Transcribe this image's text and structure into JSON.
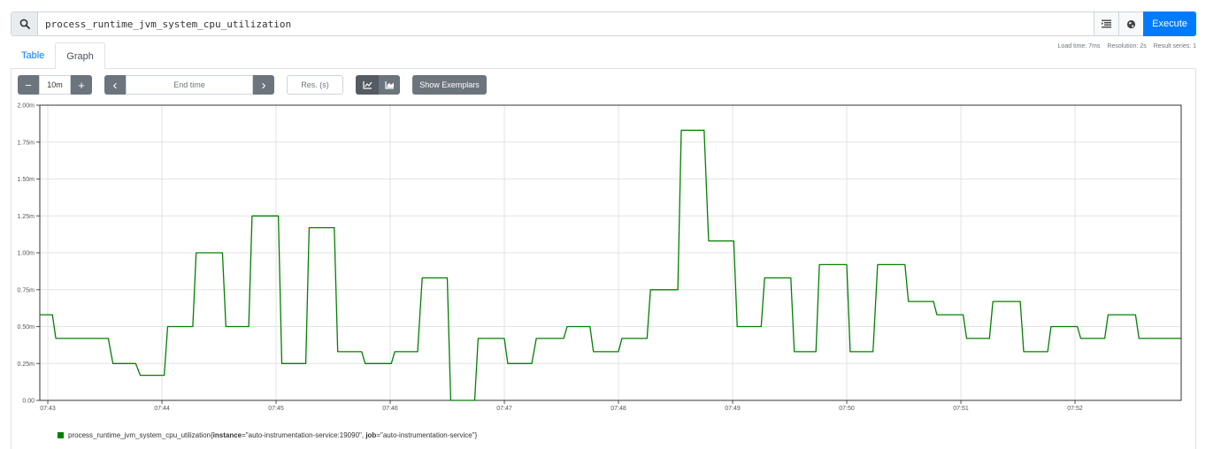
{
  "query": {
    "value": "process_runtime_jvm_system_cpu_utilization"
  },
  "toolbar": {
    "execute_label": "Execute"
  },
  "stats": {
    "load_time": "Load time: 7ms",
    "resolution": "Resolution: 2s",
    "result_series": "Result series: 1"
  },
  "tabs": [
    {
      "label": "Table"
    },
    {
      "label": "Graph"
    }
  ],
  "controls": {
    "minus": "−",
    "range": "10m",
    "plus": "+",
    "prev": "‹",
    "end_time_placeholder": "End time",
    "next": "›",
    "res_placeholder": "Res. (s)",
    "show_exemplars": "Show Exemplars"
  },
  "icons": {
    "search": "search-icon",
    "format": "format-query-icon",
    "globe": "metrics-explorer-icon",
    "line": "line-chart-icon",
    "stacked": "stacked-chart-icon"
  },
  "colors": {
    "series": "#008000",
    "accent": "#007bff",
    "button": "#6c757d"
  },
  "legend": {
    "metric": "process_runtime_jvm_system_cpu_utilization",
    "brace_open": "{",
    "label1_key": "instance",
    "label1_value": "=\"auto-instrumentation-service:19090\", ",
    "label2_key": "job",
    "label2_value": "=\"auto-instrumentation-service\"",
    "brace_close": "}"
  },
  "chart_data": {
    "type": "line",
    "step": true,
    "grid": true,
    "ylim": [
      0,
      2.0
    ],
    "xlim_minutes": [
      42.93,
      52.93
    ],
    "y_ticks": [
      {
        "v": 0,
        "label": "0.00"
      },
      {
        "v": 0.25,
        "label": "0.25m"
      },
      {
        "v": 0.5,
        "label": "0.50m"
      },
      {
        "v": 0.75,
        "label": "0.75m"
      },
      {
        "v": 1.0,
        "label": "1.00m"
      },
      {
        "v": 1.25,
        "label": "1.25m"
      },
      {
        "v": 1.5,
        "label": "1.50m"
      },
      {
        "v": 1.75,
        "label": "1.75m"
      },
      {
        "v": 2.0,
        "label": "2.00m"
      }
    ],
    "x_ticks": [
      {
        "t": 43,
        "label": "07:43"
      },
      {
        "t": 44,
        "label": "07:44"
      },
      {
        "t": 45,
        "label": "07:45"
      },
      {
        "t": 46,
        "label": "07:46"
      },
      {
        "t": 47,
        "label": "07:47"
      },
      {
        "t": 48,
        "label": "07:48"
      },
      {
        "t": 49,
        "label": "07:49"
      },
      {
        "t": 50,
        "label": "07:50"
      },
      {
        "t": 51,
        "label": "07:51"
      },
      {
        "t": 52,
        "label": "07:52"
      }
    ],
    "series": [
      {
        "name": "process_runtime_jvm_system_cpu_utilization{instance=\"auto-instrumentation-service:19090\", job=\"auto-instrumentation-service\"}",
        "color": "#008000",
        "points": [
          [
            42.93,
            0.58
          ],
          [
            43.04,
            0.58
          ],
          [
            43.07,
            0.42
          ],
          [
            43.53,
            0.42
          ],
          [
            43.57,
            0.25
          ],
          [
            43.77,
            0.25
          ],
          [
            43.81,
            0.17
          ],
          [
            44.02,
            0.17
          ],
          [
            44.05,
            0.5
          ],
          [
            44.27,
            0.5
          ],
          [
            44.3,
            1.0
          ],
          [
            44.53,
            1.0
          ],
          [
            44.56,
            0.5
          ],
          [
            44.76,
            0.5
          ],
          [
            44.79,
            1.25
          ],
          [
            45.02,
            1.25
          ],
          [
            45.05,
            0.25
          ],
          [
            45.26,
            0.25
          ],
          [
            45.29,
            1.17
          ],
          [
            45.51,
            1.17
          ],
          [
            45.54,
            0.33
          ],
          [
            45.75,
            0.33
          ],
          [
            45.78,
            0.25
          ],
          [
            46.01,
            0.25
          ],
          [
            46.04,
            0.33
          ],
          [
            46.24,
            0.33
          ],
          [
            46.28,
            0.83
          ],
          [
            46.5,
            0.83
          ],
          [
            46.53,
            0.0
          ],
          [
            46.74,
            0.0
          ],
          [
            46.77,
            0.42
          ],
          [
            47.0,
            0.42
          ],
          [
            47.03,
            0.25
          ],
          [
            47.24,
            0.25
          ],
          [
            47.28,
            0.42
          ],
          [
            47.52,
            0.42
          ],
          [
            47.55,
            0.5
          ],
          [
            47.75,
            0.5
          ],
          [
            47.78,
            0.33
          ],
          [
            48.0,
            0.33
          ],
          [
            48.03,
            0.42
          ],
          [
            48.25,
            0.42
          ],
          [
            48.28,
            0.75
          ],
          [
            48.52,
            0.75
          ],
          [
            48.55,
            1.83
          ],
          [
            48.75,
            1.83
          ],
          [
            48.79,
            1.08
          ],
          [
            49.01,
            1.08
          ],
          [
            49.04,
            0.5
          ],
          [
            49.25,
            0.5
          ],
          [
            49.28,
            0.83
          ],
          [
            49.51,
            0.83
          ],
          [
            49.54,
            0.33
          ],
          [
            49.73,
            0.33
          ],
          [
            49.76,
            0.92
          ],
          [
            50.0,
            0.92
          ],
          [
            50.03,
            0.33
          ],
          [
            50.23,
            0.33
          ],
          [
            50.27,
            0.92
          ],
          [
            50.51,
            0.92
          ],
          [
            50.54,
            0.67
          ],
          [
            50.76,
            0.67
          ],
          [
            50.79,
            0.58
          ],
          [
            51.02,
            0.58
          ],
          [
            51.05,
            0.42
          ],
          [
            51.25,
            0.42
          ],
          [
            51.28,
            0.67
          ],
          [
            51.52,
            0.67
          ],
          [
            51.55,
            0.33
          ],
          [
            51.76,
            0.33
          ],
          [
            51.79,
            0.5
          ],
          [
            52.02,
            0.5
          ],
          [
            52.05,
            0.42
          ],
          [
            52.26,
            0.42
          ],
          [
            52.29,
            0.58
          ],
          [
            52.53,
            0.58
          ],
          [
            52.56,
            0.42
          ],
          [
            52.93,
            0.42
          ]
        ]
      }
    ]
  }
}
